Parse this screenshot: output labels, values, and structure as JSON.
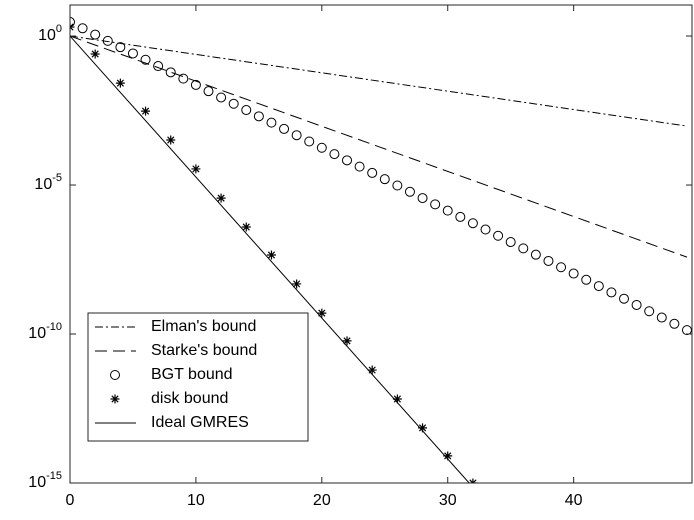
{
  "chart_data": {
    "type": "line",
    "log_y": true,
    "xlim": [
      0,
      49.4
    ],
    "ylim": [
      1e-15,
      11
    ],
    "xticks": [
      0,
      10,
      20,
      30,
      40
    ],
    "yticks": [
      {
        "value": 1,
        "label": {
          "base": "10",
          "exponent": "0"
        }
      },
      {
        "value": 1e-05,
        "label": {
          "base": "10",
          "exponent": "-5"
        }
      },
      {
        "value": 1e-10,
        "label": {
          "base": "10",
          "exponent": "-10"
        }
      },
      {
        "value": 1e-15,
        "label": {
          "base": "10",
          "exponent": "-15"
        }
      }
    ],
    "legend": "lower-left",
    "series": [
      {
        "name": "Elman's bound",
        "style": "dashdot",
        "color": "#000000",
        "x": [
          0,
          49
        ],
        "values": [
          1,
          0.00095
        ]
      },
      {
        "name": "Starke's bound",
        "style": "dash",
        "color": "#000000",
        "x": [
          0,
          49
        ],
        "values": [
          1,
          3.8e-08
        ]
      },
      {
        "name": "BGT bound",
        "style": "circle",
        "color": "#000000",
        "x": [
          0,
          1,
          2,
          3,
          4,
          5,
          6,
          7,
          8,
          9,
          10,
          11,
          12,
          13,
          14,
          15,
          16,
          17,
          18,
          19,
          20,
          21,
          22,
          23,
          24,
          25,
          26,
          27,
          28,
          29,
          30,
          31,
          32,
          33,
          34,
          35,
          36,
          37,
          38,
          39,
          40,
          41,
          42,
          43,
          44,
          45,
          46,
          47,
          48,
          49
        ],
        "values": [
          2.95,
          1.82,
          1.12,
          0.687,
          0.423,
          0.26,
          0.16,
          0.0984,
          0.0605,
          0.0372,
          0.0229,
          0.0141,
          0.00867,
          0.00533,
          0.00328,
          0.00202,
          0.00124,
          0.000764,
          0.00047,
          0.000289,
          0.000178,
          0.000109,
          6.73e-05,
          4.14e-05,
          2.55e-05,
          1.57e-05,
          9.64e-06,
          5.93e-06,
          3.65e-06,
          2.24e-06,
          1.38e-06,
          8.49e-07,
          5.22e-07,
          3.21e-07,
          1.98e-07,
          1.22e-07,
          7.48e-08,
          4.6e-08,
          2.83e-08,
          1.74e-08,
          1.07e-08,
          6.59e-09,
          4.06e-09,
          2.49e-09,
          1.53e-09,
          9.44e-10,
          5.81e-10,
          3.57e-10,
          2.2e-10,
          1.35e-10
        ]
      },
      {
        "name": "disk bound",
        "style": "star",
        "color": "#000000",
        "x": [
          0,
          2,
          4,
          6,
          8,
          10,
          12,
          14,
          16,
          18,
          20,
          22,
          24,
          26,
          28,
          30,
          32
        ],
        "values": [
          2,
          0.25,
          0.0263,
          0.00302,
          0.000324,
          3.47e-05,
          3.63e-06,
          3.89e-07,
          4.47e-08,
          4.79e-09,
          5.01e-10,
          5.89e-11,
          6.17e-12,
          6.61e-13,
          7.08e-14,
          8.13e-15,
          1e-15
        ]
      },
      {
        "name": "Ideal GMRES",
        "style": "solid",
        "color": "#000000",
        "x": [
          0,
          31.7
        ],
        "values": [
          1,
          1e-15
        ]
      }
    ]
  }
}
